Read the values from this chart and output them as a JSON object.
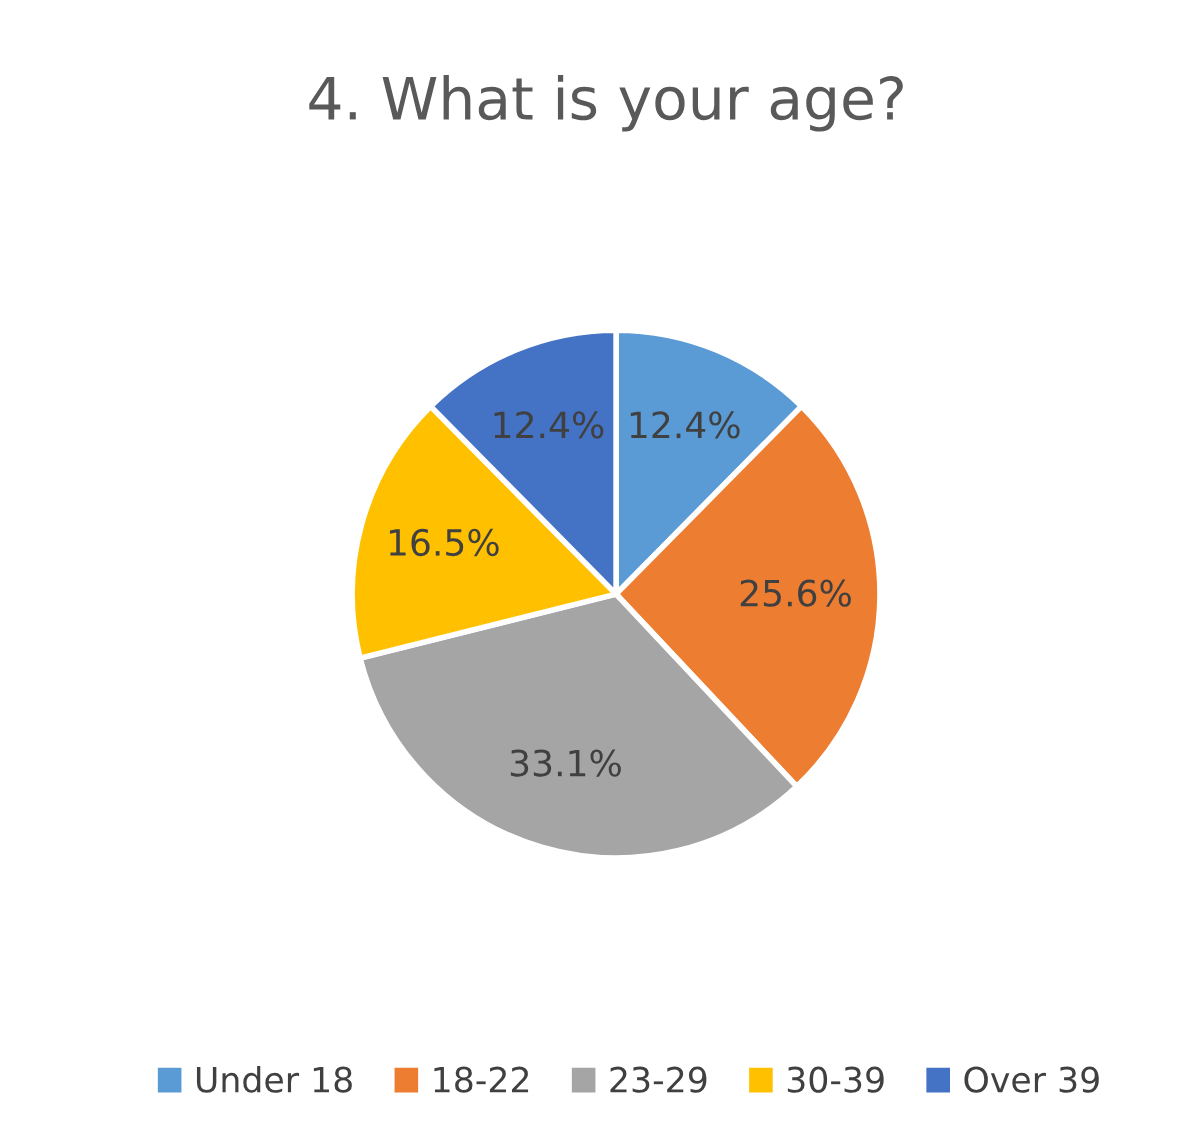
{
  "chart_data": {
    "type": "pie",
    "title": "4. What is your age?",
    "categories": [
      "Under 18",
      "18-22",
      "23-29",
      "30-39",
      "Over 39"
    ],
    "values": [
      12.4,
      25.6,
      33.1,
      16.5,
      12.4
    ],
    "value_labels": [
      "12.4%",
      "25.6%",
      "33.1%",
      "16.5%",
      "12.4%"
    ],
    "colors": [
      "#5b9bd5",
      "#ed7d31",
      "#a5a5a5",
      "#ffc000",
      "#4472c4"
    ],
    "legend": "bottom"
  }
}
